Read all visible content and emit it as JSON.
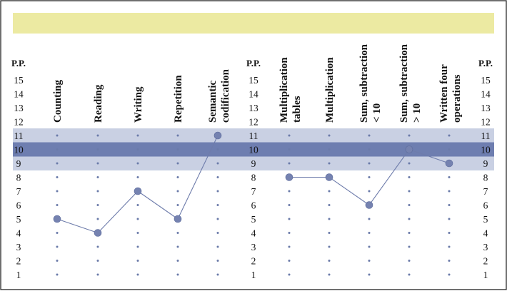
{
  "chart_data": {
    "type": "line",
    "scale_header": "P.P.",
    "y_ticks": [
      15,
      14,
      13,
      12,
      11,
      10,
      9,
      8,
      7,
      6,
      5,
      4,
      3,
      2,
      1
    ],
    "bands": {
      "light": [
        9,
        11
      ],
      "dark": [
        10
      ]
    },
    "groups": [
      {
        "categories": [
          {
            "lines": [
              "Counting"
            ]
          },
          {
            "lines": [
              "Reading"
            ]
          },
          {
            "lines": [
              "Writing"
            ]
          },
          {
            "lines": [
              "Repetition"
            ]
          },
          {
            "lines": [
              "Semantic",
              "codification"
            ]
          }
        ],
        "values": [
          5,
          4,
          7,
          5,
          11
        ]
      },
      {
        "categories": [
          {
            "lines": [
              "Multiplication",
              "tables"
            ]
          },
          {
            "lines": [
              "Multiplication"
            ]
          },
          {
            "lines": [
              "Sum, subtraction",
              "< 10"
            ]
          },
          {
            "lines": [
              "Sum, subtraction",
              "> 10"
            ]
          },
          {
            "lines": [
              "Written four",
              "operations"
            ]
          }
        ],
        "values": [
          8,
          8,
          6,
          10,
          9
        ]
      }
    ],
    "colors": {
      "top_band": "#eceaa2",
      "band_light": "#c9d0e3",
      "band_dark": "#6e7eb0",
      "series": "#7582b0"
    }
  }
}
